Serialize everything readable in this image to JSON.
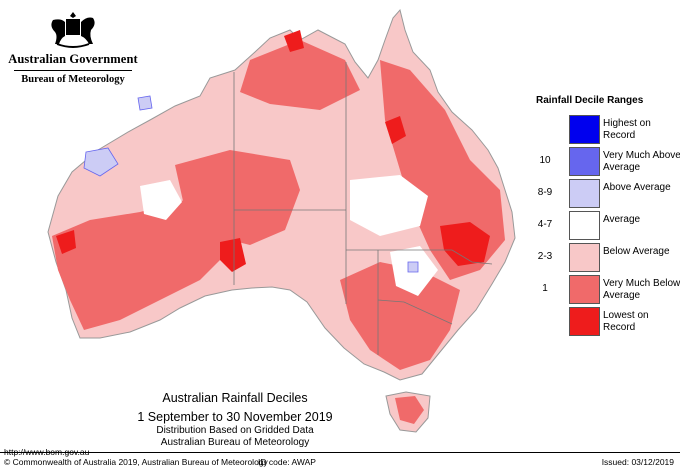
{
  "agency": {
    "government": "Australian Government",
    "bureau": "Bureau of Meteorology",
    "crest_icon": "commonwealth-coat-of-arms"
  },
  "legend": {
    "title": "Rainfall Decile Ranges",
    "items": [
      {
        "code": "",
        "label": "Highest on Record",
        "color": "#0000ee"
      },
      {
        "code": "10",
        "label": "Very Much Above Average",
        "color": "#6666ee"
      },
      {
        "code": "8-9",
        "label": "Above Average",
        "color": "#ccccf5"
      },
      {
        "code": "4-7",
        "label": "Average",
        "color": "#ffffff"
      },
      {
        "code": "2-3",
        "label": "Below Average",
        "color": "#f8c8c8"
      },
      {
        "code": "1",
        "label": "Very Much Below Average",
        "color": "#f06a6a"
      },
      {
        "code": "",
        "label": "Lowest on Record",
        "color": "#ee1c1c"
      }
    ]
  },
  "map": {
    "title": "Australian Rainfall Deciles",
    "period": "1 September to 30 November 2019",
    "method": "Distribution Based on Gridded Data",
    "source": "Australian Bureau of Meteorology"
  },
  "footer": {
    "url": "http://www.bom.gov.au",
    "copyright": "© Commonwealth of Australia 2019, Australian Bureau of Meteorology",
    "id_code": "ID code: AWAP",
    "issued": "Issued: 03/12/2019"
  }
}
